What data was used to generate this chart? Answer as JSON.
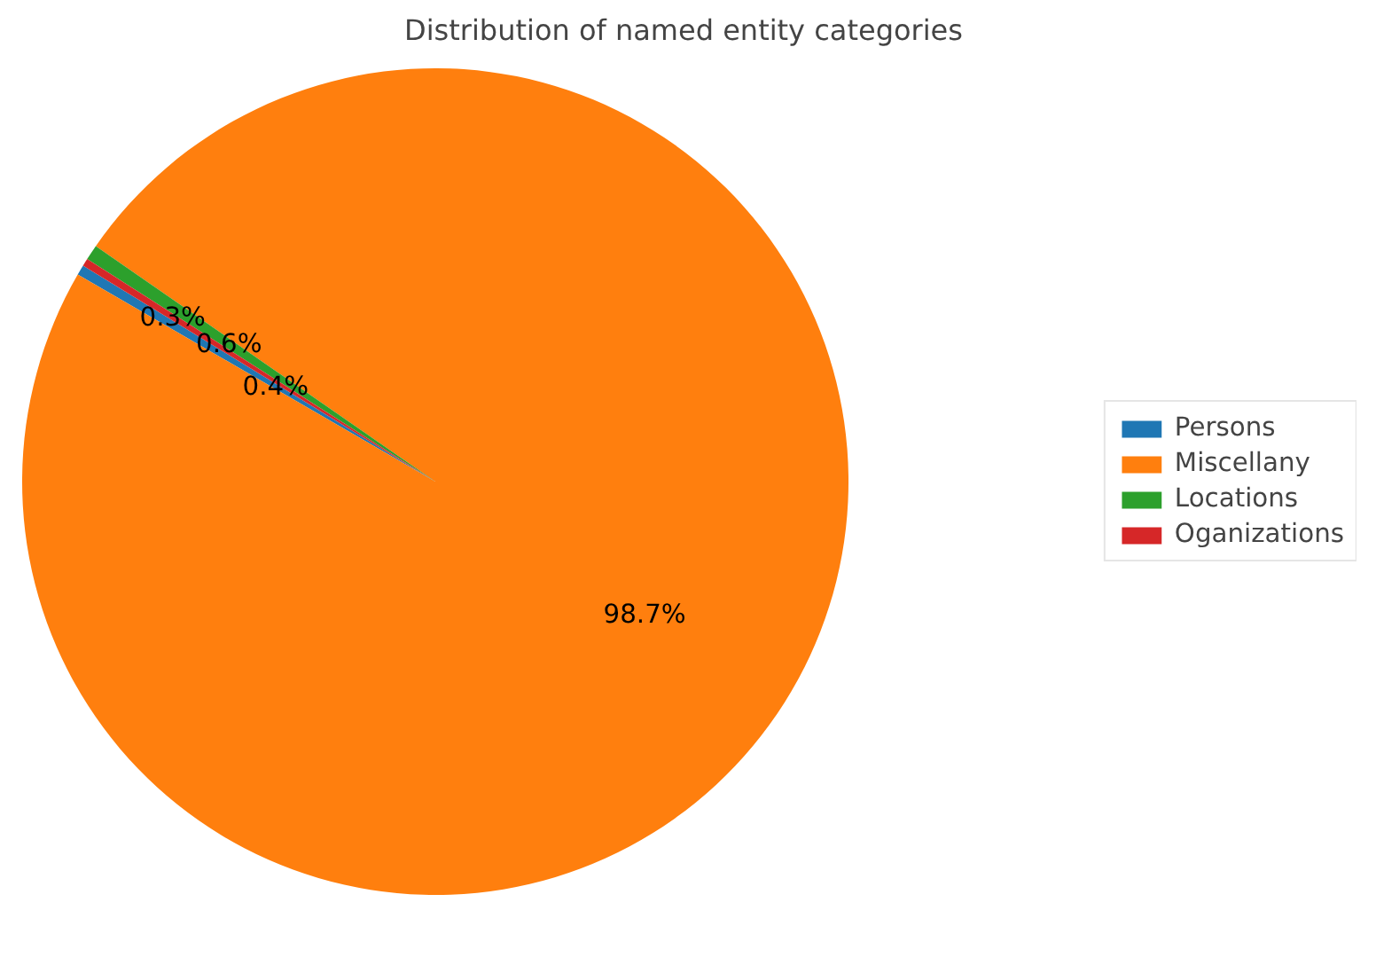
{
  "chart_data": {
    "type": "pie",
    "title": "Distribution of named entity categories",
    "categories": [
      "Persons",
      "Miscellany",
      "Locations",
      "Oganizations"
    ],
    "values": [
      0.4,
      98.7,
      0.6,
      0.3
    ],
    "colors": [
      "#1f77b4",
      "#ff7f0e",
      "#2ca02c",
      "#d62728"
    ],
    "value_labels": [
      "0.4%",
      "98.7%",
      "0.6%",
      "0.3%"
    ],
    "data_labels": true,
    "legend": "right"
  }
}
